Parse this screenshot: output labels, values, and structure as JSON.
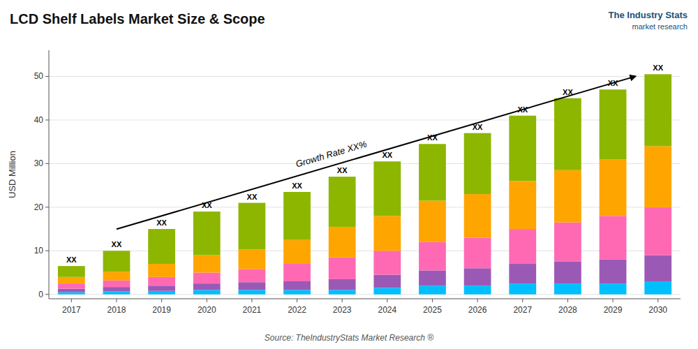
{
  "chart_data": {
    "type": "bar",
    "stacked": true,
    "title": "LCD Shelf Labels Market Size & Scope",
    "y_label": "USD Million",
    "categories": [
      "2017",
      "2018",
      "2019",
      "2020",
      "2021",
      "2022",
      "2023",
      "2024",
      "2025",
      "2026",
      "2027",
      "2028",
      "2029",
      "2030"
    ],
    "series": [
      {
        "color": "#00BFFF",
        "values": [
          0.5,
          0.7,
          0.8,
          1.0,
          1.0,
          1.0,
          1.0,
          1.5,
          2.0,
          2.0,
          2.5,
          2.5,
          2.5,
          3.0
        ]
      },
      {
        "color": "#9B59B6",
        "values": [
          0.8,
          1.0,
          1.2,
          1.5,
          1.8,
          2.0,
          2.5,
          3.0,
          3.5,
          4.0,
          4.5,
          5.0,
          5.5,
          6.0
        ]
      },
      {
        "color": "#FF69B4",
        "values": [
          1.2,
          1.5,
          2.0,
          2.5,
          3.0,
          4.0,
          5.0,
          5.5,
          6.5,
          7.0,
          8.0,
          9.0,
          10.0,
          11.0
        ]
      },
      {
        "color": "#FFA500",
        "values": [
          1.5,
          2.0,
          3.0,
          4.0,
          4.5,
          5.5,
          7.0,
          8.0,
          9.5,
          10.0,
          11.0,
          12.0,
          13.0,
          14.0
        ]
      },
      {
        "color": "#8DB600",
        "values": [
          2.5,
          4.8,
          8.0,
          10.0,
          10.7,
          11.0,
          11.5,
          12.5,
          13.0,
          14.0,
          15.0,
          16.5,
          16.0,
          16.5
        ]
      }
    ],
    "ylim": [
      -1,
      56
    ],
    "yticks": [
      0,
      10,
      20,
      30,
      40,
      50
    ],
    "grid": true,
    "annotations": [
      {
        "text": "XX",
        "x": "2017",
        "y": 6.5
      },
      {
        "text": "XX",
        "x": "2018",
        "y": 10.0
      },
      {
        "text": "XX",
        "x": "2019",
        "y": 15.0
      },
      {
        "text": "XX",
        "x": "2020",
        "y": 19.0
      },
      {
        "text": "XX",
        "x": "2021",
        "y": 21.0
      },
      {
        "text": "XX",
        "x": "2022",
        "y": 23.5
      },
      {
        "text": "XX",
        "x": "2023",
        "y": 27.0
      },
      {
        "text": "XX",
        "x": "2024",
        "y": 30.5
      },
      {
        "text": "XX",
        "x": "2025",
        "y": 34.5
      },
      {
        "text": "XX",
        "x": "2026",
        "y": 37.0
      },
      {
        "text": "XX",
        "x": "2027",
        "y": 41.0
      },
      {
        "text": "XX",
        "x": "2028",
        "y": 45.0
      },
      {
        "text": "XX",
        "x": "2029",
        "y": 47.0
      },
      {
        "text": "XX",
        "x": "2030",
        "y": 50.5
      },
      {
        "text": "Growth Rate XX%"
      },
      {
        "text": "Source: TheIndustryStats Market Research ®"
      },
      {
        "text": "The Industry Stats"
      },
      {
        "text": "market research"
      }
    ]
  }
}
